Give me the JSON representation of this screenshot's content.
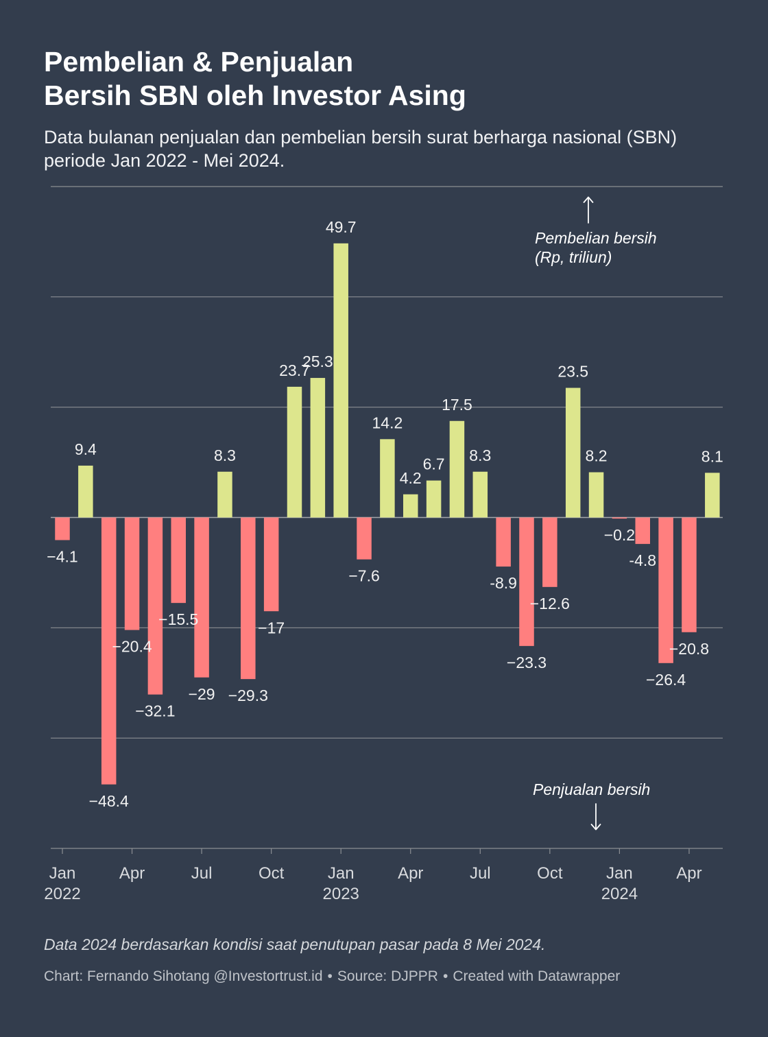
{
  "page": {
    "background": "#333d4d"
  },
  "chart_data": {
    "type": "bar",
    "title": "Pembelian & Penjualan\nBersih SBN oleh Investor Asing",
    "subtitle": "Data bulanan penjualan dan pembelian bersih surat berharga nasional (SBN) periode Jan 2022 - Mei 2024.",
    "x": [
      "2022-01",
      "2022-02",
      "2022-03",
      "2022-04",
      "2022-05",
      "2022-06",
      "2022-07",
      "2022-08",
      "2022-09",
      "2022-10",
      "2022-11",
      "2022-12",
      "2023-01",
      "2023-02",
      "2023-03",
      "2023-04",
      "2023-05",
      "2023-06",
      "2023-07",
      "2023-08",
      "2023-09",
      "2023-10",
      "2023-11",
      "2023-12",
      "2024-01",
      "2024-02",
      "2024-03",
      "2024-04",
      "2024-05"
    ],
    "values": [
      -4.1,
      9.4,
      -48.4,
      -20.4,
      -32.1,
      -15.5,
      -29,
      8.3,
      -29.3,
      -17,
      23.7,
      25.3,
      49.7,
      -7.6,
      14.2,
      4.2,
      6.7,
      17.5,
      8.3,
      -8.9,
      -23.3,
      -12.6,
      23.5,
      8.2,
      -0.2,
      -4.8,
      -26.4,
      -20.8,
      8.1
    ],
    "data_labels": [
      "−4.1",
      "9.4",
      "−48.4",
      "−20.4",
      "−32.1",
      "−15.5",
      "−29",
      "8.3",
      "−29.3",
      "−17",
      "23.7",
      "25.3",
      "49.7",
      "−7.6",
      "14.2",
      "4.2",
      "6.7",
      "17.5",
      "8.3",
      "-8.9",
      "−23.3",
      "−12.6",
      "23.5",
      "8.2",
      "−0.2",
      "-4.8",
      "−26.4",
      "−20.8",
      "8.1"
    ],
    "ylim": [
      -60,
      60
    ],
    "y_gridlines": [
      60,
      40,
      20,
      0,
      -20,
      -40,
      -60
    ],
    "grid": true,
    "x_ticks": [
      {
        "x": "2022-01",
        "label": "Jan",
        "year": "2022"
      },
      {
        "x": "2022-04",
        "label": "Apr"
      },
      {
        "x": "2022-07",
        "label": "Jul"
      },
      {
        "x": "2022-10",
        "label": "Oct"
      },
      {
        "x": "2023-01",
        "label": "Jan",
        "year": "2023"
      },
      {
        "x": "2023-04",
        "label": "Apr"
      },
      {
        "x": "2023-07",
        "label": "Jul"
      },
      {
        "x": "2023-10",
        "label": "Oct"
      },
      {
        "x": "2024-01",
        "label": "Jan",
        "year": "2024"
      },
      {
        "x": "2024-04",
        "label": "Apr"
      }
    ],
    "annotations": {
      "positive": "Pembelian bersih\n(Rp, triliun)",
      "negative": "Penjualan bersih"
    },
    "colors": {
      "positive": "#dde68d",
      "negative": "#ff7f7f"
    }
  },
  "footer": {
    "note": "Data 2024 berdasarkan kondisi saat penutupan pasar pada 8 Mei 2024.",
    "byline": "Chart: Fernando Sihotang @Investortrust.id",
    "separator": "•",
    "source": "Source: DJPPR",
    "created_with": "Created with Datawrapper"
  }
}
